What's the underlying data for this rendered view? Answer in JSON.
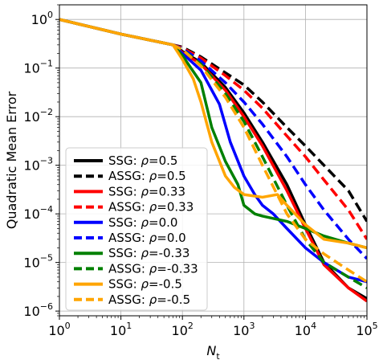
{
  "chart_data": {
    "type": "line",
    "title": "",
    "xlabel": "N_t",
    "ylabel": "Quadratic Mean Error",
    "xscale": "log",
    "yscale": "log",
    "xlim": [
      1,
      100000
    ],
    "ylim": [
      8e-07,
      2
    ],
    "grid": true,
    "legend_position": "lower-left",
    "x_ticks": [
      {
        "value": 1,
        "base": "10",
        "exp": "0"
      },
      {
        "value": 10,
        "base": "10",
        "exp": "1"
      },
      {
        "value": 100,
        "base": "10",
        "exp": "2"
      },
      {
        "value": 1000,
        "base": "10",
        "exp": "3"
      },
      {
        "value": 10000,
        "base": "10",
        "exp": "4"
      },
      {
        "value": 100000,
        "base": "10",
        "exp": "5"
      }
    ],
    "y_ticks": [
      {
        "value": 1,
        "base": "10",
        "exp": "0"
      },
      {
        "value": 0.1,
        "base": "10",
        "exp": "−1"
      },
      {
        "value": 0.01,
        "base": "10",
        "exp": "−2"
      },
      {
        "value": 0.001,
        "base": "10",
        "exp": "−3"
      },
      {
        "value": 0.0001,
        "base": "10",
        "exp": "−4"
      },
      {
        "value": 1e-05,
        "base": "10",
        "exp": "−5"
      },
      {
        "value": 1e-06,
        "base": "10",
        "exp": "−6"
      }
    ],
    "series": [
      {
        "name": "SSG: ρ=0.5",
        "method": "SSG",
        "rho": "0.5",
        "color": "#000000",
        "dashed": false,
        "x": [
          1,
          10,
          70,
          100,
          200,
          500,
          1000,
          2000,
          5000,
          10000,
          20000,
          50000,
          100000
        ],
        "y": [
          1,
          0.5,
          0.3,
          0.22,
          0.13,
          0.04,
          0.012,
          0.003,
          0.0004,
          6e-05,
          1e-05,
          3e-06,
          1.8e-06
        ]
      },
      {
        "name": "ASSG: ρ=0.5",
        "method": "ASSG",
        "rho": "0.5",
        "color": "#000000",
        "dashed": true,
        "x": [
          1,
          10,
          70,
          100,
          200,
          500,
          1000,
          2000,
          5000,
          10000,
          20000,
          50000,
          100000
        ],
        "y": [
          1,
          0.5,
          0.3,
          0.27,
          0.17,
          0.08,
          0.045,
          0.02,
          0.006,
          0.0025,
          0.001,
          0.0003,
          7e-05
        ]
      },
      {
        "name": "SSG: ρ=0.33",
        "method": "SSG",
        "rho": "0.33",
        "color": "#ff0000",
        "dashed": false,
        "x": [
          1,
          10,
          70,
          100,
          200,
          500,
          1000,
          2000,
          5000,
          10000,
          20000,
          50000,
          100000
        ],
        "y": [
          1,
          0.5,
          0.3,
          0.21,
          0.12,
          0.035,
          0.01,
          0.0025,
          0.0003,
          5e-05,
          9e-06,
          3e-06,
          1.6e-06
        ]
      },
      {
        "name": "ASSG: ρ=0.33",
        "method": "ASSG",
        "rho": "0.33",
        "color": "#ff0000",
        "dashed": true,
        "x": [
          1,
          10,
          70,
          100,
          200,
          500,
          1000,
          2000,
          5000,
          10000,
          20000,
          50000,
          100000
        ],
        "y": [
          1,
          0.5,
          0.3,
          0.26,
          0.16,
          0.07,
          0.035,
          0.015,
          0.004,
          0.0015,
          0.0005,
          0.00012,
          3e-05
        ]
      },
      {
        "name": "SSG: ρ=0.0",
        "method": "SSG",
        "rho": "0.0",
        "color": "#0000ff",
        "dashed": false,
        "x": [
          1,
          10,
          70,
          100,
          200,
          400,
          600,
          1000,
          1500,
          2000,
          3000,
          5000,
          10000,
          20000,
          50000,
          100000
        ],
        "y": [
          1,
          0.5,
          0.3,
          0.2,
          0.09,
          0.018,
          0.003,
          0.0006,
          0.00025,
          0.00015,
          0.0001,
          5e-05,
          2e-05,
          1e-05,
          5e-06,
          4e-06
        ]
      },
      {
        "name": "ASSG: ρ=0.0",
        "method": "ASSG",
        "rho": "0.0",
        "color": "#0000ff",
        "dashed": true,
        "x": [
          1,
          10,
          70,
          100,
          200,
          500,
          1000,
          2000,
          5000,
          10000,
          20000,
          50000,
          100000
        ],
        "y": [
          1,
          0.5,
          0.3,
          0.25,
          0.14,
          0.05,
          0.02,
          0.007,
          0.0015,
          0.0004,
          0.00012,
          3e-05,
          1.2e-05
        ]
      },
      {
        "name": "SSG: ρ=-0.33",
        "method": "SSG",
        "rho": "-0.33",
        "color": "#008000",
        "dashed": false,
        "x": [
          1,
          10,
          70,
          100,
          200,
          300,
          500,
          800,
          1000,
          1500,
          2000,
          5000,
          10000,
          20000,
          50000,
          100000
        ],
        "y": [
          1,
          0.5,
          0.3,
          0.18,
          0.05,
          0.006,
          0.0012,
          0.0004,
          0.00015,
          0.0001,
          9e-05,
          7e-05,
          5e-05,
          3.5e-05,
          2.5e-05,
          2e-05
        ]
      },
      {
        "name": "ASSG: ρ=-0.33",
        "method": "ASSG",
        "rho": "-0.33",
        "color": "#008000",
        "dashed": true,
        "x": [
          1,
          10,
          70,
          100,
          200,
          500,
          1000,
          2000,
          5000,
          10000,
          20000,
          50000,
          100000
        ],
        "y": [
          1,
          0.5,
          0.3,
          0.24,
          0.12,
          0.03,
          0.008,
          0.0015,
          0.00015,
          3e-05,
          1e-05,
          5e-06,
          3e-06
        ]
      },
      {
        "name": "SSG: ρ=-0.5",
        "method": "SSG",
        "rho": "-0.5",
        "color": "#ffa500",
        "dashed": false,
        "x": [
          1,
          10,
          70,
          100,
          150,
          200,
          300,
          500,
          700,
          1000,
          2000,
          3500,
          5000,
          10000,
          20000,
          50000,
          100000
        ],
        "y": [
          1,
          0.5,
          0.3,
          0.15,
          0.06,
          0.02,
          0.003,
          0.0006,
          0.00035,
          0.00025,
          0.00022,
          0.00025,
          0.00015,
          6e-05,
          3e-05,
          2.5e-05,
          2e-05
        ]
      },
      {
        "name": "ASSG: ρ=-0.5",
        "method": "ASSG",
        "rho": "-0.5",
        "color": "#ffa500",
        "dashed": true,
        "x": [
          1,
          10,
          70,
          100,
          200,
          500,
          1000,
          2000,
          5000,
          10000,
          20000,
          50000,
          100000
        ],
        "y": [
          1,
          0.5,
          0.3,
          0.24,
          0.11,
          0.025,
          0.006,
          0.001,
          0.0001,
          3e-05,
          1.5e-05,
          7e-06,
          4e-06
        ]
      }
    ]
  }
}
